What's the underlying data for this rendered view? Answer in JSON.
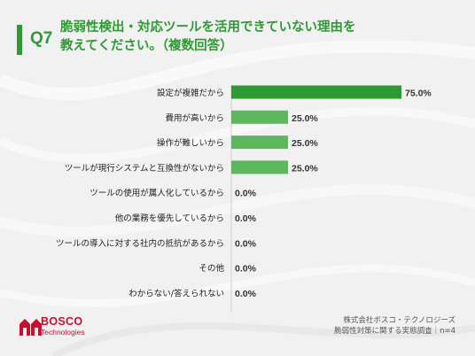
{
  "colors": {
    "accent": "#2e9a34",
    "bar_top": "#2e9a34",
    "bar_other": "#5cb85c",
    "logo_red": "#c8102e",
    "background": "#f1f1f2"
  },
  "header": {
    "question_number": "Q7",
    "title_lines": [
      "脆弱性検出・対応ツールを活用できていない理由を",
      "教えてください。（複数回答）"
    ]
  },
  "chart_data": {
    "type": "bar",
    "orientation": "horizontal",
    "categories": [
      "設定が複雑だから",
      "費用が高いから",
      "操作が難しいから",
      "ツールが現行システムと互換性がないから",
      "ツールの使用が属人化しているから",
      "他の業務を優先しているから",
      "ツールの導入に対する社内の抵抗があるから",
      "その他",
      "わからない/答えられない"
    ],
    "values": [
      75.0,
      25.0,
      25.0,
      25.0,
      0.0,
      0.0,
      0.0,
      0.0,
      0.0
    ],
    "value_labels": [
      "75.0%",
      "25.0%",
      "25.0%",
      "25.0%",
      "0.0%",
      "0.0%",
      "0.0%",
      "0.0%",
      "0.0%"
    ],
    "unit": "%",
    "xlim": [
      0,
      100
    ],
    "grid": false,
    "legend": "none"
  },
  "footer": {
    "logo_name": "BOSCO",
    "logo_sub": "Technologies",
    "source_line1": "株式会社ボスコ・テクノロジーズ",
    "source_line2": "脆弱性対策に関する実態調査｜n=4"
  }
}
